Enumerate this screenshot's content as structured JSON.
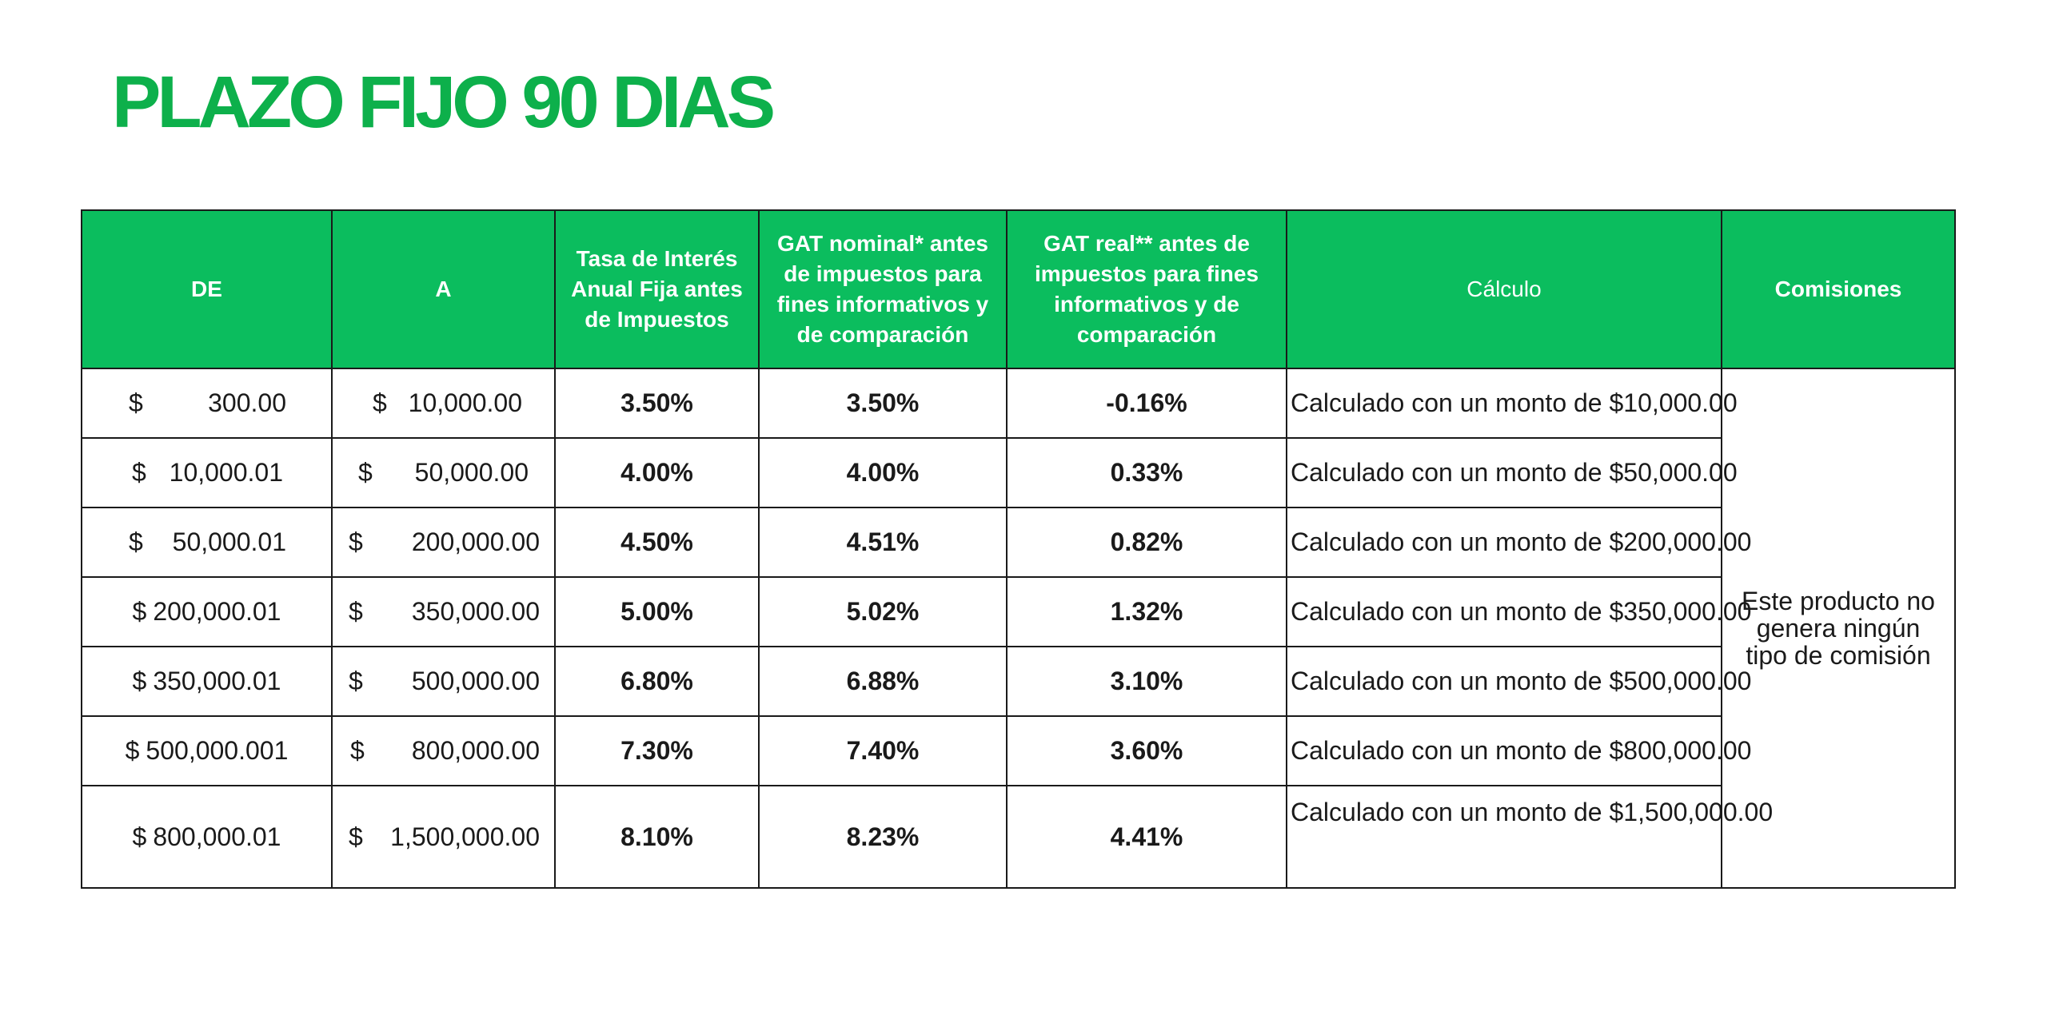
{
  "title": "PLAZO FIJO 90 DIAS",
  "headers": {
    "de": "DE",
    "a": "A",
    "tasa": "Tasa de Interés Anual Fija antes de Impuestos",
    "gat_nominal": "GAT nominal* antes de impuestos para fines informativos y de comparación",
    "gat_real": "GAT real** antes de impuestos para fines informativos y de comparación",
    "calculo": "Cálculo",
    "comisiones": "Comisiones"
  },
  "currency": "$",
  "rows": [
    {
      "de": "300.00",
      "a": "10,000.00",
      "tasa": "3.50%",
      "gat_nominal": "3.50%",
      "gat_real": "-0.16%",
      "calculo": "Calculado con un monto de $10,000.00"
    },
    {
      "de": "10,000.01",
      "a": "50,000.00",
      "tasa": "4.00%",
      "gat_nominal": "4.00%",
      "gat_real": "0.33%",
      "calculo": "Calculado con un monto de $50,000.00"
    },
    {
      "de": "50,000.01",
      "a": "200,000.00",
      "tasa": "4.50%",
      "gat_nominal": "4.51%",
      "gat_real": "0.82%",
      "calculo": "Calculado con un monto de $200,000.00"
    },
    {
      "de": "200,000.01",
      "a": "350,000.00",
      "tasa": "5.00%",
      "gat_nominal": "5.02%",
      "gat_real": "1.32%",
      "calculo": "Calculado con un monto de $350,000.00"
    },
    {
      "de": "350,000.01",
      "a": "500,000.00",
      "tasa": "6.80%",
      "gat_nominal": "6.88%",
      "gat_real": "3.10%",
      "calculo": "Calculado con un monto de $500,000.00"
    },
    {
      "de": "500,000.001",
      "a": "800,000.00",
      "tasa": "7.30%",
      "gat_nominal": "7.40%",
      "gat_real": "3.60%",
      "calculo": "Calculado con un monto de $800,000.00"
    },
    {
      "de": "800,000.01",
      "a": "1,500,000.00",
      "tasa": "8.10%",
      "gat_nominal": "8.23%",
      "gat_real": "4.41%",
      "calculo": "Calculado con un monto de $1,500,000.00"
    }
  ],
  "comisiones_text": "Este producto no genera ningún tipo de comisión",
  "colors": {
    "brand_green": "#0db04b",
    "header_bg": "#0bbd5e",
    "value_green": "#12ad4b"
  }
}
